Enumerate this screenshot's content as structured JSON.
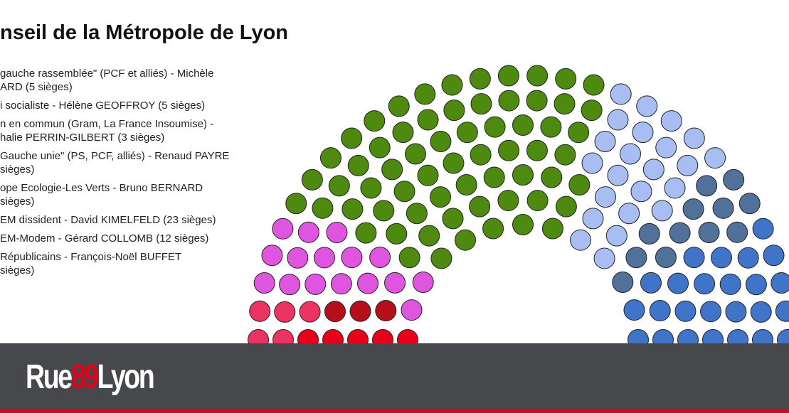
{
  "chart_data": {
    "type": "parliament",
    "title": "nseil de la Métropole de Lyon",
    "series": [
      {
        "name": "gauche rassemblée\" (PCF et alliés) - Michèle\nARD (5 sièges)",
        "color": "#e8001a",
        "value": 5
      },
      {
        "name": "i socialiste - Hélène GEOFFROY (5 sièges)",
        "color": "#ec3463",
        "value": 5
      },
      {
        "name": "n en commun (Gram, La France Insoumise) -\nhalie PERRIN-GILBERT (3 sièges)",
        "color": "#b5101a",
        "value": 3
      },
      {
        "name": "Gauche unie\" (PS, PCF, alliés) - Renaud PAYRE\nsièges)",
        "color": "#e055e0",
        "value": 16
      },
      {
        "name": "ope Ecologie-Les Verts - Bruno BERNARD\nsièges)",
        "color": "#4e8a10",
        "value": 64
      },
      {
        "name": "EM dissident - David KIMELFELD (23 sièges)",
        "color": "#a8bdf2",
        "value": 23
      },
      {
        "name": "EM-Modem - Gérard COLLOMB (12 sièges)",
        "color": "#51709a",
        "value": 12
      },
      {
        "name": "Républicains - François-Noël BUFFET\nsièges)",
        "color": "#3f74c9",
        "value": 25
      }
    ]
  },
  "footer": {
    "logo": [
      "Rue",
      "89",
      "Lyon"
    ]
  }
}
